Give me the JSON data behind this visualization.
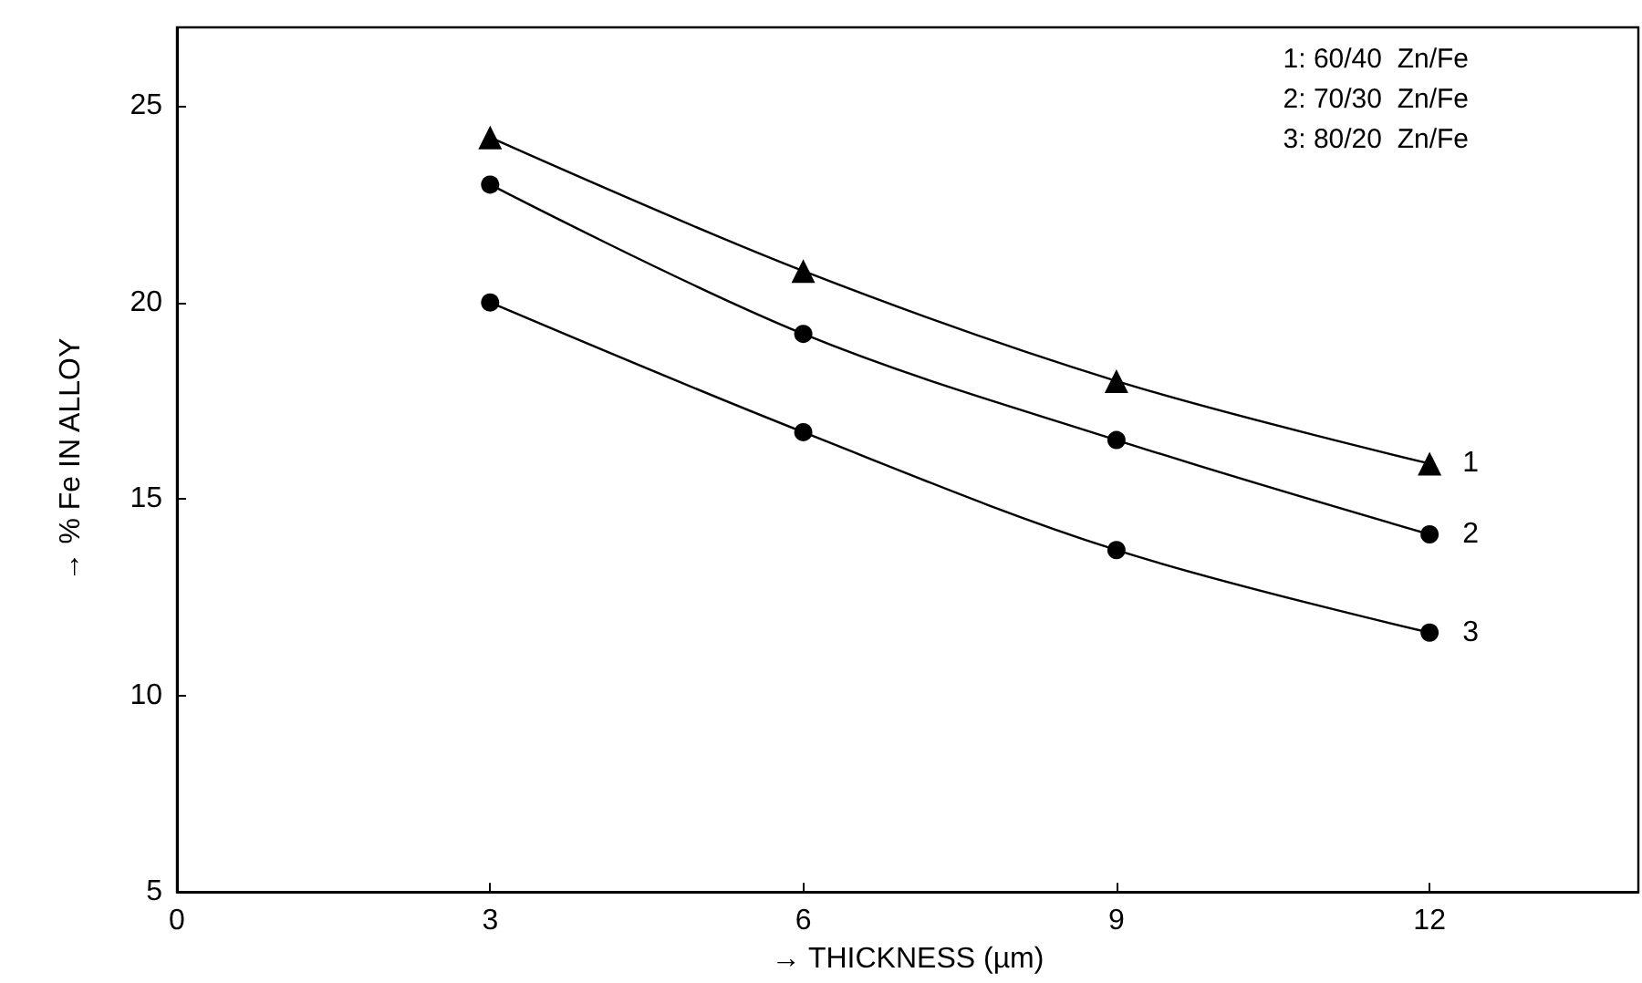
{
  "chart_data": {
    "type": "line",
    "xlabel": "→ THICKNESS (µm)",
    "ylabel": "→ % Fe IN ALLOY",
    "x": [
      3,
      6,
      9,
      12
    ],
    "series": [
      {
        "name": "1",
        "color": "#000000",
        "marker": "triangle",
        "values": [
          24.2,
          20.8,
          18.0,
          15.9
        ]
      },
      {
        "name": "2",
        "color": "#000000",
        "marker": "circle",
        "values": [
          23.0,
          19.2,
          16.5,
          14.1
        ]
      },
      {
        "name": "3",
        "color": "#000000",
        "marker": "circle",
        "values": [
          20.0,
          16.7,
          13.7,
          11.6
        ]
      }
    ],
    "xlim": [
      0,
      14
    ],
    "xticks": [
      0,
      3,
      6,
      9,
      12
    ],
    "ylim": [
      5,
      27
    ],
    "yticks": [
      5,
      10,
      15,
      20,
      25
    ],
    "grid": false,
    "legend": false,
    "annotations": [
      "1: 60/40  Zn/Fe",
      "2: 70/30  Zn/Fe",
      "3: 80/20  Zn/Fe"
    ]
  }
}
